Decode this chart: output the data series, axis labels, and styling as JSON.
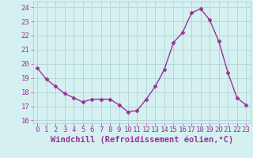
{
  "x": [
    0,
    1,
    2,
    3,
    4,
    5,
    6,
    7,
    8,
    9,
    10,
    11,
    12,
    13,
    14,
    15,
    16,
    17,
    18,
    19,
    20,
    21,
    22,
    23
  ],
  "y": [
    19.7,
    18.9,
    18.4,
    17.9,
    17.6,
    17.3,
    17.5,
    17.5,
    17.5,
    17.1,
    16.6,
    16.7,
    17.5,
    18.4,
    19.6,
    21.5,
    22.2,
    23.6,
    23.9,
    23.1,
    21.6,
    19.4,
    17.6,
    17.1
  ],
  "line_color": "#993399",
  "marker": "D",
  "marker_size": 2.5,
  "bg_color": "#d5f0f0",
  "grid_color": "#aacece",
  "xlabel": "Windchill (Refroidissement éolien,°C)",
  "xlabel_color": "#993399",
  "ylabel_ticks": [
    16,
    17,
    18,
    19,
    20,
    21,
    22,
    23,
    24
  ],
  "xtick_labels": [
    "0",
    "1",
    "2",
    "3",
    "4",
    "5",
    "6",
    "7",
    "8",
    "9",
    "10",
    "11",
    "12",
    "13",
    "14",
    "15",
    "16",
    "17",
    "18",
    "19",
    "20",
    "21",
    "22",
    "23"
  ],
  "ylim": [
    15.8,
    24.4
  ],
  "xlim": [
    -0.5,
    23.5
  ],
  "tick_color": "#993399",
  "tick_fontsize": 6.5,
  "xlabel_fontsize": 7.5,
  "linewidth": 1.0
}
